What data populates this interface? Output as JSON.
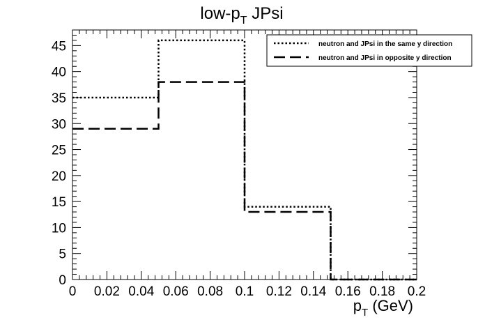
{
  "chart_data": {
    "type": "line",
    "title": {
      "main": "low-p",
      "sub": "T",
      "rest": " JPsi"
    },
    "xlabel": {
      "main": "p",
      "sub": "T",
      "rest": " (GeV)"
    },
    "xlim": [
      0,
      0.2
    ],
    "ylim": [
      0,
      48
    ],
    "x_ticks": [
      0,
      0.02,
      0.04,
      0.06,
      0.08,
      0.1,
      0.12,
      0.14,
      0.16,
      0.18,
      0.2
    ],
    "x_tick_labels": [
      "0",
      "0.02",
      "0.04",
      "0.06",
      "0.08",
      "0.1",
      "0.12",
      "0.14",
      "0.16",
      "0.18",
      "0.2"
    ],
    "y_ticks": [
      0,
      5,
      10,
      15,
      20,
      25,
      30,
      35,
      40,
      45
    ],
    "y_tick_labels": [
      "0",
      "5",
      "10",
      "15",
      "20",
      "25",
      "30",
      "35",
      "40",
      "45"
    ],
    "bin_edges": [
      0,
      0.05,
      0.1,
      0.15,
      0.2
    ],
    "legend_position": "top-right",
    "grid": false,
    "series": [
      {
        "name": "neutron and JPsi in the same y direction",
        "style": "dotted",
        "values": [
          35,
          46,
          14,
          0
        ]
      },
      {
        "name": "neutron and JPsi in opposite y direction",
        "style": "dashed",
        "values": [
          29,
          38,
          13,
          0
        ]
      }
    ]
  }
}
